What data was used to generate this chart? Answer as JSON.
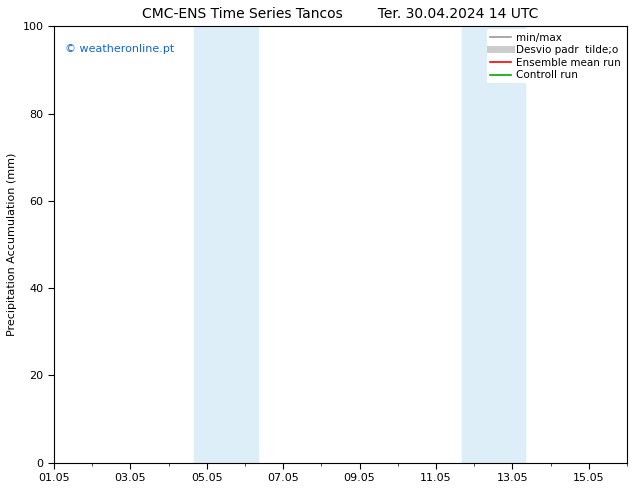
{
  "title_left": "CMC-ENS Time Series Tancos",
  "title_right": "Ter. 30.04.2024 14 UTC",
  "ylabel": "Precipitation Accumulation (mm)",
  "ylim": [
    0,
    100
  ],
  "yticks": [
    0,
    20,
    40,
    60,
    80,
    100
  ],
  "xlim": [
    0,
    15
  ],
  "xtick_labels": [
    "01.05",
    "03.05",
    "05.05",
    "07.05",
    "09.05",
    "11.05",
    "13.05",
    "15.05"
  ],
  "xtick_positions": [
    0,
    2,
    4,
    6,
    8,
    10,
    12,
    14
  ],
  "shaded_bands": [
    {
      "xstart": 3.67,
      "xend": 5.33
    },
    {
      "xstart": 10.67,
      "xend": 12.33
    }
  ],
  "shaded_color": "#ddeef8",
  "watermark_text": "© weatheronline.pt",
  "watermark_color": "#1166cc",
  "legend_items": [
    {
      "label": "min/max",
      "color": "#999999",
      "lw": 1.2
    },
    {
      "label": "Desvio padr  tilde;o",
      "color": "#cccccc",
      "lw": 5
    },
    {
      "label": "Ensemble mean run",
      "color": "#ff0000",
      "lw": 1.2
    },
    {
      "label": "Controll run",
      "color": "#00aa00",
      "lw": 1.2
    }
  ],
  "bg_color": "#ffffff",
  "title_fontsize": 10,
  "ylabel_fontsize": 8,
  "tick_fontsize": 8,
  "legend_fontsize": 7.5,
  "watermark_fontsize": 8
}
